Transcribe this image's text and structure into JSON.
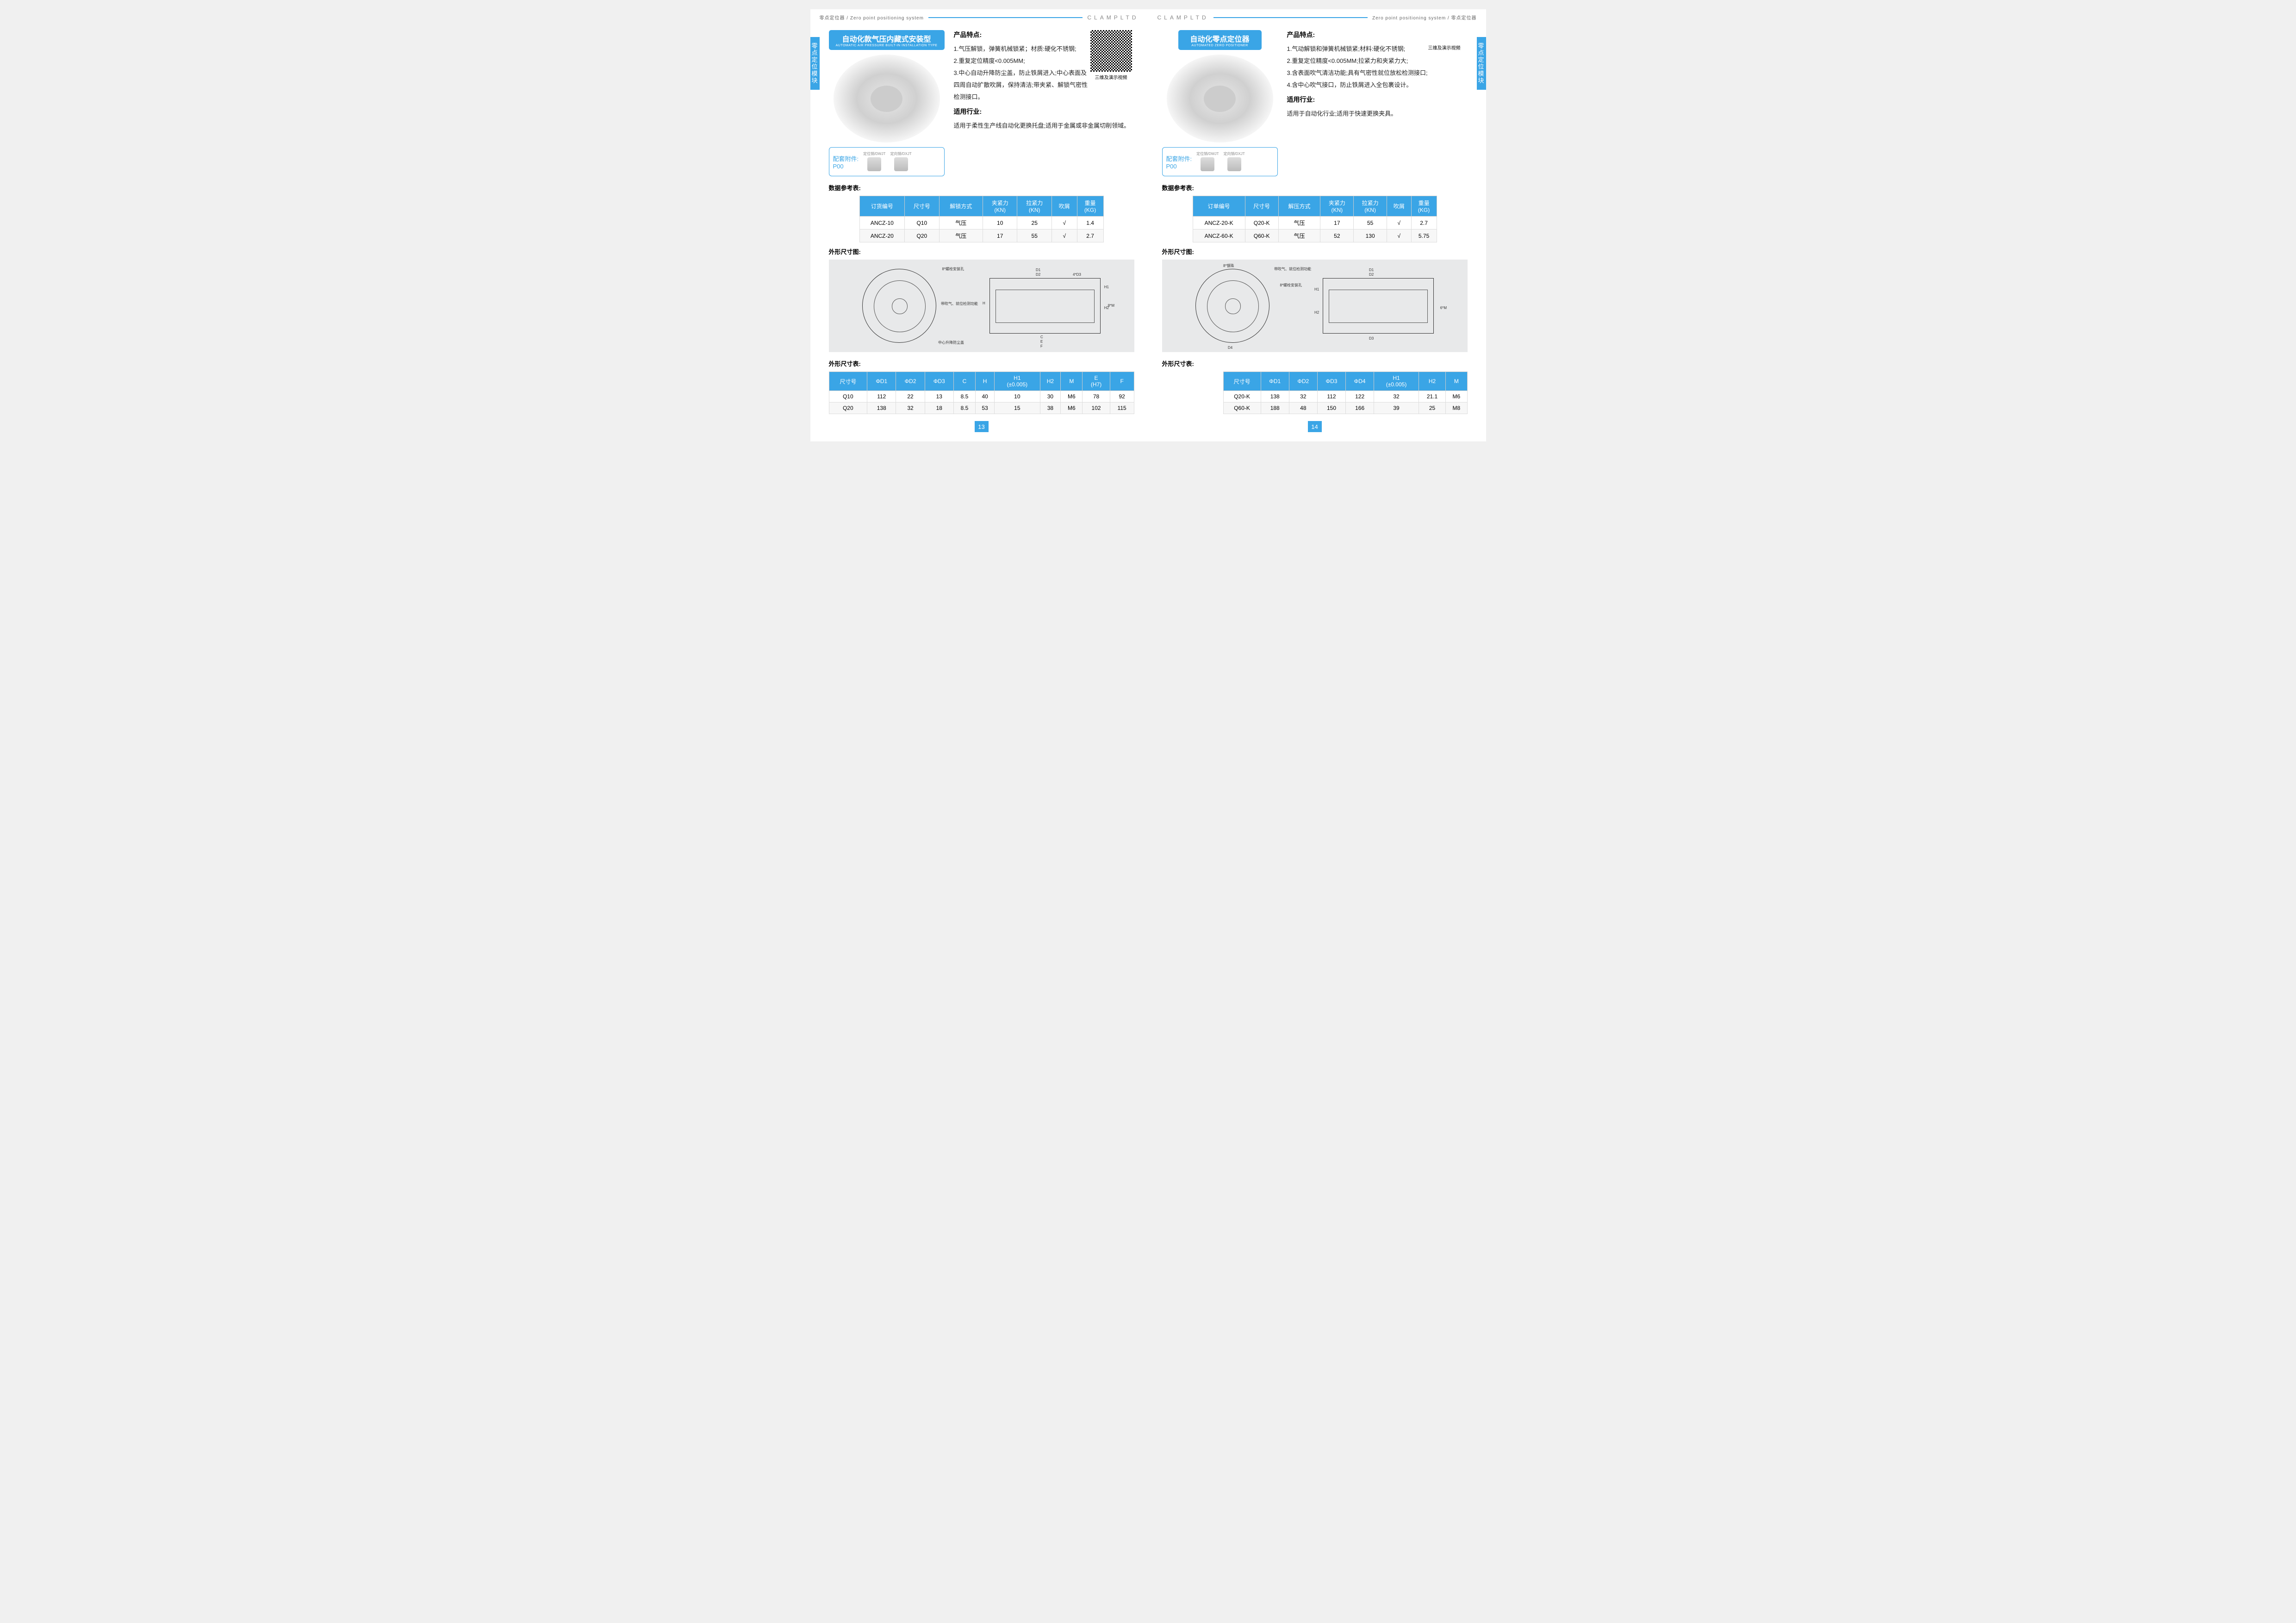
{
  "brand": "CLAMPLTD",
  "header_left": "零点定位器 / Zero point positioning system",
  "header_right": "Zero point positioning system / 零点定位器",
  "side_tab": "零点定位模块",
  "qr_label": "三维及演示视频",
  "accessory": {
    "label1": "配套附件:",
    "label2": "P00",
    "item1": "定位销/DWJT",
    "item2": "定向销/DXJT"
  },
  "section_labels": {
    "features": "产品特点:",
    "industry": "适用行业:",
    "data_table": "数据参考表:",
    "dim_drawing": "外形尺寸图:",
    "dim_table": "外形尺寸表:"
  },
  "left_page": {
    "title_main": "自动化款气压内藏式安装型",
    "title_sub": "AUTOMATIC AIR PRESSURE BUILT-IN INSTALLATION TYPE",
    "features": [
      "1.气压解锁，弹簧机械锁紧；材质:硬化不锈钢;",
      "2.重复定位精度<0.005MM;",
      "3.中心自动升降防尘盖，防止铁屑进入;中心表面及四周自动扩散吹屑，保持清洁;带夹紧、解锁气密性检测接口。"
    ],
    "industry": "适用于柔性生产线自动化更换托盘;适用于金属或非金属切削领域。",
    "data_headers": [
      "订货编号",
      "尺寸号",
      "解锁方式",
      "夹紧力\n(KN)",
      "拉紧力\n(KN)",
      "吹屑",
      "重量\n(KG)"
    ],
    "data_rows": [
      [
        "ANCZ-10",
        "Q10",
        "气压",
        "10",
        "25",
        "√",
        "1.4"
      ],
      [
        "ANCZ-20",
        "Q20",
        "气压",
        "17",
        "55",
        "√",
        "2.7"
      ]
    ],
    "dim_headers": [
      "尺寸号",
      "ΦD1",
      "ΦD2",
      "ΦD3",
      "C",
      "H",
      "H1\n(±0.005)",
      "H2",
      "M",
      "E\n(H7)",
      "F"
    ],
    "dim_rows": [
      [
        "Q10",
        "112",
        "22",
        "13",
        "8.5",
        "40",
        "10",
        "30",
        "M6",
        "78",
        "92"
      ],
      [
        "Q20",
        "138",
        "32",
        "18",
        "8.5",
        "53",
        "15",
        "38",
        "M6",
        "102",
        "115"
      ]
    ],
    "drawing_annot": {
      "a1": "8*螺栓安装孔",
      "a2": "带吹气、就位检测功能",
      "a3": "中心升降防尘盖",
      "d_labels": [
        "D1",
        "D2",
        "4*D3",
        "H1",
        "H",
        "H2",
        "8*M",
        "C",
        "E",
        "F"
      ]
    },
    "page_num": "13"
  },
  "right_page": {
    "title_main": "自动化零点定位器",
    "title_sub": "AUTOMATED ZERO POSITIONER",
    "features": [
      "1.气动解锁和弹簧机械锁紧;材料:硬化不锈钢;",
      "2.重复定位精度<0.005MM;拉紧力和夹紧力大;",
      "3.含表面吹气清洁功能;具有气密性就位放松检测接口;",
      "4.含中心吹气接口，防止铁屑进入全包裹设计。"
    ],
    "industry": "适用于自动化行业;适用于快速更换夹具。",
    "data_headers": [
      "订单编号",
      "尺寸号",
      "解压方式",
      "夹紧力\n(KN)",
      "拉紧力\n(KN)",
      "吹屑",
      "重量\n(KG)"
    ],
    "data_rows": [
      [
        "ANCZ-20-K",
        "Q20-K",
        "气压",
        "17",
        "55",
        "√",
        "2.7"
      ],
      [
        "ANCZ-60-K",
        "Q60-K",
        "气压",
        "52",
        "130",
        "√",
        "5.75"
      ]
    ],
    "dim_headers": [
      "尺寸号",
      "ΦD1",
      "ΦD2",
      "ΦD3",
      "ΦD4",
      "H1\n(±0.005)",
      "H2",
      "M"
    ],
    "dim_rows": [
      [
        "Q20-K",
        "138",
        "32",
        "112",
        "122",
        "32",
        "21.1",
        "M6"
      ],
      [
        "Q60-K",
        "188",
        "48",
        "150",
        "166",
        "39",
        "25",
        "M8"
      ]
    ],
    "drawing_annot": {
      "a1": "8*钢珠",
      "a2": "带吹气、就位检测功能",
      "a3": "8*螺栓安装孔",
      "d_labels": [
        "D1",
        "D2",
        "H1",
        "H2",
        "6*M",
        "D3",
        "D4"
      ]
    },
    "page_num": "14"
  },
  "colors": {
    "primary": "#3aa5e6",
    "header_line": "#3aa5e6",
    "text": "#222222",
    "bg_drawing": "#e8e9ea"
  }
}
